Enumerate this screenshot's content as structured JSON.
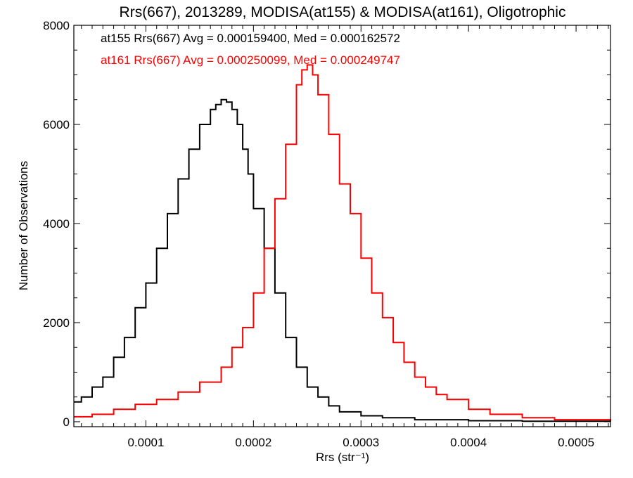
{
  "chart_data": {
    "type": "line",
    "title": "Rrs(667), 2013289, MODISA(at155) & MODISA(at161), Oligotrophic",
    "xlabel": "Rrs (str⁻¹)",
    "ylabel": "Number of Observations",
    "xlim": [
      3.3e-05,
      0.000532
    ],
    "ylim": [
      -100,
      8000
    ],
    "x_ticks": [
      {
        "value": 0.0001,
        "label": "0.0001"
      },
      {
        "value": 0.0002,
        "label": "0.0002"
      },
      {
        "value": 0.0003,
        "label": "0.0003"
      },
      {
        "value": 0.0004,
        "label": "0.0004"
      },
      {
        "value": 0.0005,
        "label": "0.0005"
      }
    ],
    "y_ticks": [
      {
        "value": 0,
        "label": "0"
      },
      {
        "value": 2000,
        "label": "2000"
      },
      {
        "value": 4000,
        "label": "4000"
      },
      {
        "value": 6000,
        "label": "6000"
      },
      {
        "value": 8000,
        "label": "8000"
      }
    ],
    "x_minor_step": 1e-05,
    "y_minor_step": 500,
    "grid": false,
    "legend_position": "top-left",
    "series": [
      {
        "label": "at155 Rrs(667) Avg = 0.000159400, Med = 0.000162572",
        "color": "#000000",
        "style": "step",
        "x": [
          3.3e-05,
          4e-05,
          5e-05,
          6e-05,
          7e-05,
          8e-05,
          9e-05,
          0.0001,
          0.00011,
          0.00012,
          0.00013,
          0.00014,
          0.00015,
          0.00016,
          0.000165,
          0.00017,
          0.000175,
          0.00018,
          0.000185,
          0.00019,
          0.000195,
          0.0002,
          0.00021,
          0.00022,
          0.00023,
          0.00024,
          0.00025,
          0.00026,
          0.00027,
          0.00028,
          0.0003,
          0.00032,
          0.00035,
          0.0004,
          0.00045,
          0.000532
        ],
        "y": [
          400,
          500,
          700,
          900,
          1300,
          1700,
          2300,
          2800,
          3500,
          4200,
          4900,
          5500,
          6000,
          6300,
          6400,
          6500,
          6450,
          6300,
          6000,
          5500,
          5000,
          4300,
          3500,
          2600,
          1700,
          1100,
          700,
          500,
          320,
          200,
          120,
          80,
          40,
          20,
          10,
          5
        ]
      },
      {
        "label": "at161 Rrs(667) Avg = 0.000250099, Med = 0.000249747",
        "color": "#ff0000",
        "style": "step",
        "x": [
          3.3e-05,
          5e-05,
          7e-05,
          9e-05,
          0.00011,
          0.00013,
          0.00015,
          0.00017,
          0.00018,
          0.00019,
          0.0002,
          0.00021,
          0.00022,
          0.00023,
          0.00024,
          0.000245,
          0.00025,
          0.000255,
          0.00026,
          0.00027,
          0.00028,
          0.00029,
          0.0003,
          0.00031,
          0.00032,
          0.00033,
          0.00034,
          0.00035,
          0.00036,
          0.00037,
          0.00038,
          0.0004,
          0.00042,
          0.00045,
          0.00048,
          0.000532
        ],
        "y": [
          100,
          150,
          250,
          350,
          450,
          600,
          800,
          1100,
          1500,
          1900,
          2600,
          3500,
          4500,
          5600,
          6800,
          7100,
          7200,
          7000,
          6600,
          5800,
          4800,
          4200,
          3300,
          2600,
          2100,
          1600,
          1200,
          900,
          700,
          550,
          450,
          250,
          150,
          80,
          40,
          20
        ]
      }
    ]
  }
}
